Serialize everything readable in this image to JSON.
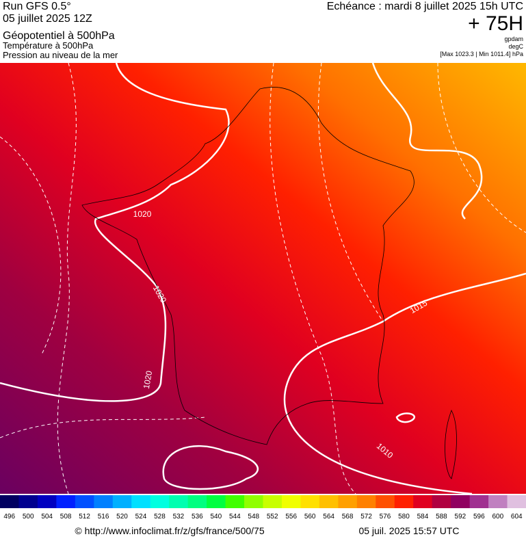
{
  "header": {
    "run": "Run GFS 0.5°",
    "run_date": "05 juillet 2025 12Z",
    "field1": "Géopotentiel à 500hPa",
    "field2": "Température à 500hPa",
    "field3": "Pression au niveau de la mer",
    "valid": "Echéance : mardi 8 juillet 2025 15h UTC",
    "lead": "+ 75H",
    "unit1": "gpdam",
    "unit2": "degC",
    "range": "[Max 1023.3 | Min 1011.4] hPa"
  },
  "isobars": [
    "1020",
    "1020",
    "1020",
    "1015",
    "1010"
  ],
  "legend": {
    "labels": [
      496,
      500,
      504,
      508,
      512,
      516,
      520,
      524,
      528,
      532,
      536,
      540,
      544,
      548,
      552,
      556,
      560,
      564,
      568,
      572,
      576,
      580,
      584,
      588,
      592,
      596,
      600,
      604
    ],
    "colors": [
      "#000060",
      "#00008f",
      "#0000c0",
      "#0020ff",
      "#0050ff",
      "#0080ff",
      "#00b0ff",
      "#00e0ff",
      "#00ffe0",
      "#00ffb0",
      "#00ff80",
      "#00ff40",
      "#40ff00",
      "#90ff00",
      "#c8ff00",
      "#f0ff00",
      "#ffe000",
      "#ffc000",
      "#ffa000",
      "#ff8000",
      "#ff5000",
      "#ff2000",
      "#e00020",
      "#b00040",
      "#900060",
      "#a03090",
      "#c080c0",
      "#e0c0e0"
    ]
  },
  "footer": {
    "url": "© http://www.infoclimat.fr/z/gfs/france/500/75",
    "timestamp": "05 juil. 2025 15:57 UTC"
  }
}
